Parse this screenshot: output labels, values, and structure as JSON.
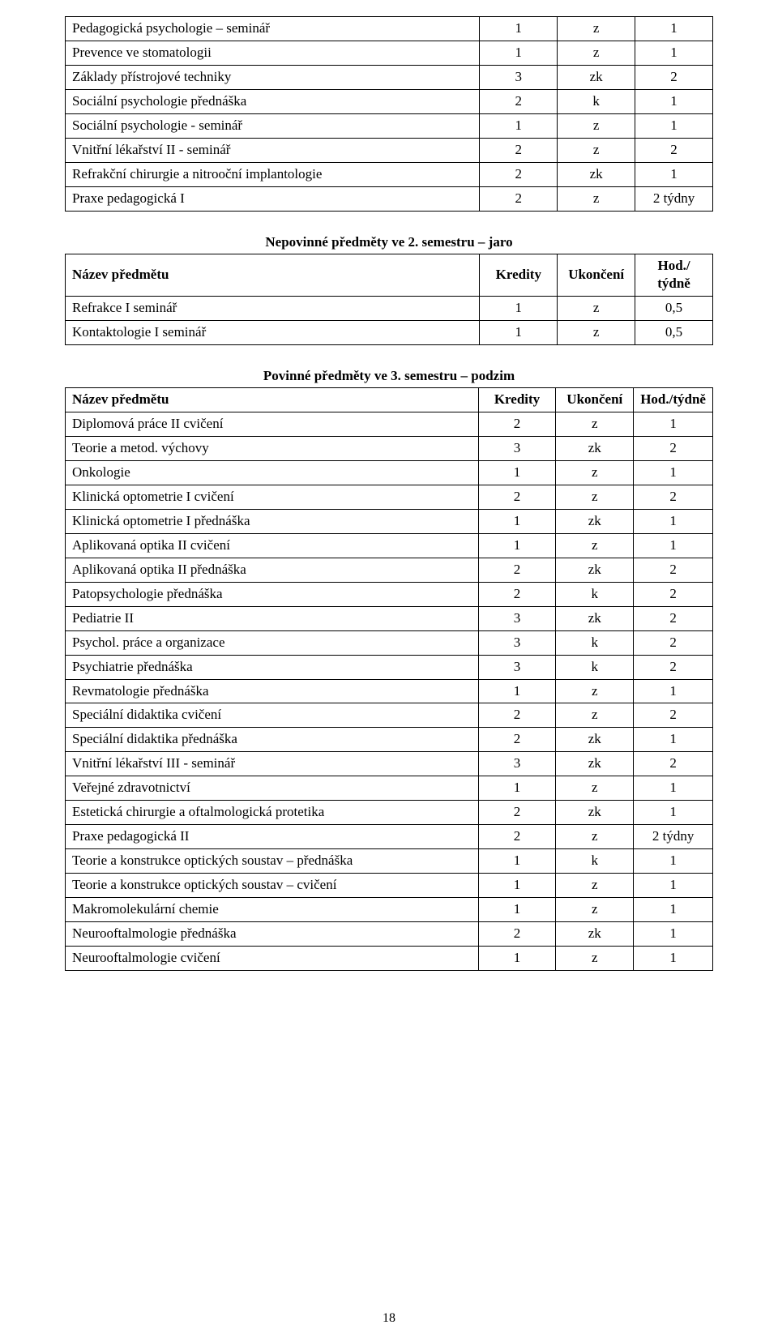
{
  "pageNumber": "18",
  "tables": [
    {
      "title": null,
      "header": null,
      "rows": [
        {
          "name": "Pedagogická psychologie – seminář",
          "credits": "1",
          "end": "z",
          "hours": "1"
        },
        {
          "name": "Prevence ve stomatologii",
          "credits": "1",
          "end": "z",
          "hours": "1"
        },
        {
          "name": "Základy přístrojové techniky",
          "credits": "3",
          "end": "zk",
          "hours": "2"
        },
        {
          "name": "Sociální psychologie přednáška",
          "credits": "2",
          "end": "k",
          "hours": "1"
        },
        {
          "name": "Sociální psychologie - seminář",
          "credits": "1",
          "end": "z",
          "hours": "1"
        },
        {
          "name": "Vnitřní lékařství II - seminář",
          "credits": "2",
          "end": "z",
          "hours": "2"
        },
        {
          "name": "Refrakční chirurgie a nitrooční implantologie",
          "credits": "2",
          "end": "zk",
          "hours": "1"
        },
        {
          "name": "Praxe pedagogická I",
          "credits": "2",
          "end": "z",
          "hours": "2 týdny"
        }
      ]
    },
    {
      "title": "Nepovinné předměty ve 2. semestru – jaro",
      "header": {
        "name": "Název předmětu",
        "credits": "Kredity",
        "end": "Ukončení",
        "hours": "Hod./ týdně"
      },
      "rows": [
        {
          "name": "Refrakce I seminář",
          "credits": "1",
          "end": "z",
          "hours": "0,5"
        },
        {
          "name": "Kontaktologie I seminář",
          "credits": "1",
          "end": "z",
          "hours": "0,5"
        }
      ]
    },
    {
      "title": "Povinné předměty ve 3. semestru – podzim",
      "header": {
        "name": "Název předmětu",
        "credits": "Kredity",
        "end": "Ukončení",
        "hours": "Hod./týdně"
      },
      "rows": [
        {
          "name": "Diplomová práce II cvičení",
          "credits": "2",
          "end": "z",
          "hours": "1"
        },
        {
          "name": "Teorie a metod. výchovy",
          "credits": "3",
          "end": "zk",
          "hours": "2"
        },
        {
          "name": "Onkologie",
          "credits": "1",
          "end": "z",
          "hours": "1"
        },
        {
          "name": "Klinická optometrie I cvičení",
          "credits": "2",
          "end": "z",
          "hours": "2"
        },
        {
          "name": "Klinická optometrie I přednáška",
          "credits": "1",
          "end": "zk",
          "hours": "1"
        },
        {
          "name": "Aplikovaná optika II cvičení",
          "credits": "1",
          "end": "z",
          "hours": "1"
        },
        {
          "name": "Aplikovaná optika II přednáška",
          "credits": "2",
          "end": "zk",
          "hours": "2"
        },
        {
          "name": "Patopsychologie přednáška",
          "credits": "2",
          "end": "k",
          "hours": "2"
        },
        {
          "name": "Pediatrie II",
          "credits": "3",
          "end": "zk",
          "hours": "2"
        },
        {
          "name": "Psychol. práce a organizace",
          "credits": "3",
          "end": "k",
          "hours": "2"
        },
        {
          "name": "Psychiatrie přednáška",
          "credits": "3",
          "end": "k",
          "hours": "2"
        },
        {
          "name": "Revmatologie přednáška",
          "credits": "1",
          "end": "z",
          "hours": "1"
        },
        {
          "name": "Speciální didaktika cvičení",
          "credits": "2",
          "end": "z",
          "hours": "2"
        },
        {
          "name": "Speciální didaktika přednáška",
          "credits": "2",
          "end": "zk",
          "hours": "1"
        },
        {
          "name": "Vnitřní lékařství III - seminář",
          "credits": "3",
          "end": "zk",
          "hours": "2"
        },
        {
          "name": "Veřejné zdravotnictví",
          "credits": "1",
          "end": "z",
          "hours": "1"
        },
        {
          "name": "Estetická chirurgie a oftalmologická protetika",
          "credits": "2",
          "end": "zk",
          "hours": "1"
        },
        {
          "name": "Praxe pedagogická II",
          "credits": "2",
          "end": "z",
          "hours": "2 týdny"
        },
        {
          "name": "Teorie a konstrukce optických soustav – přednáška",
          "credits": "1",
          "end": "k",
          "hours": "1"
        },
        {
          "name": "Teorie a konstrukce optických soustav – cvičení",
          "credits": "1",
          "end": "z",
          "hours": "1"
        },
        {
          "name": "Makromolekulární chemie",
          "credits": "1",
          "end": "z",
          "hours": "1"
        },
        {
          "name": "Neurooftalmologie přednáška",
          "credits": "2",
          "end": "zk",
          "hours": "1"
        },
        {
          "name": "Neurooftalmologie cvičení",
          "credits": "1",
          "end": "z",
          "hours": "1"
        }
      ]
    }
  ]
}
